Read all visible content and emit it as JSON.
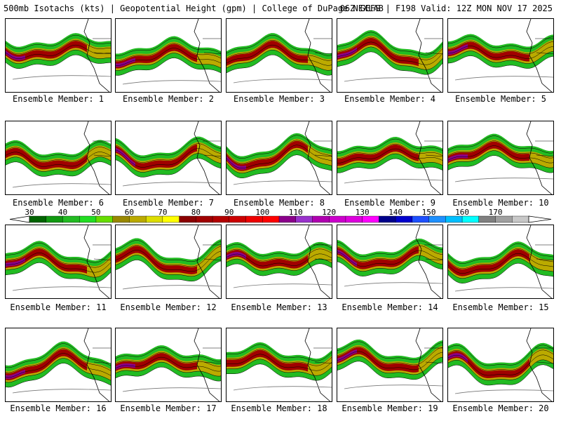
{
  "header": {
    "left": "500mb Isotachs (kts) | Geopotential Height (gpm) | College of DuPage NEXLAB",
    "right": "06Z GEFS | F198 Valid: 12Z MON NOV 17 2025"
  },
  "members": [
    "Ensemble Member: 1",
    "Ensemble Member: 2",
    "Ensemble Member: 3",
    "Ensemble Member: 4",
    "Ensemble Member: 5",
    "Ensemble Member: 6",
    "Ensemble Member: 7",
    "Ensemble Member: 8",
    "Ensemble Member: 9",
    "Ensemble Member: 10",
    "Ensemble Member: 11",
    "Ensemble Member: 12",
    "Ensemble Member: 13",
    "Ensemble Member: 14",
    "Ensemble Member: 15",
    "Ensemble Member: 16",
    "Ensemble Member: 17",
    "Ensemble Member: 18",
    "Ensemble Member: 19",
    "Ensemble Member: 20"
  ],
  "legend": {
    "labels": [
      "30",
      "40",
      "50",
      "60",
      "70",
      "80",
      "90",
      "100",
      "110",
      "120",
      "130",
      "140",
      "150",
      "160",
      "170"
    ],
    "colors": [
      "#006400",
      "#119911",
      "#22bb22",
      "#22dd22",
      "#66dd00",
      "#998800",
      "#bbaa00",
      "#dddd00",
      "#ffff00",
      "#8b0000",
      "#a00000",
      "#b30000",
      "#cc0000",
      "#ee0000",
      "#ff0000",
      "#8b008b",
      "#9932cc",
      "#b000b0",
      "#cc00cc",
      "#dd00dd",
      "#ff00ff",
      "#00008b",
      "#0000cd",
      "#1e50ff",
      "#1e90ff",
      "#00bfff",
      "#00ffff",
      "#808080",
      "#a0a0a0",
      "#c8c8c8"
    ]
  }
}
